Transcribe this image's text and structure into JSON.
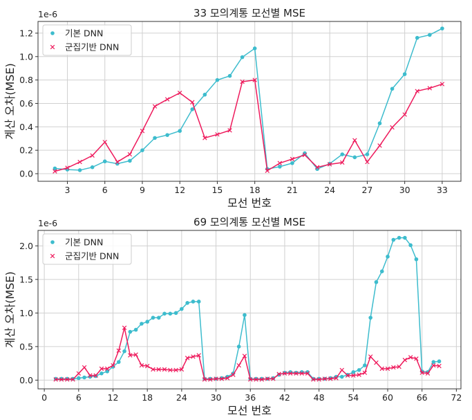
{
  "chart_data": [
    {
      "type": "line",
      "title": "33 모의계통 모선별 MSE",
      "offset_label": "1e-6",
      "x_label": "모선 번호",
      "y_label": "계산 오차(MSE)",
      "x": [
        2,
        3,
        4,
        5,
        6,
        7,
        8,
        9,
        10,
        11,
        12,
        13,
        14,
        15,
        16,
        17,
        18,
        19,
        20,
        21,
        22,
        23,
        24,
        25,
        26,
        27,
        28,
        29,
        30,
        31,
        32,
        33
      ],
      "series": [
        {
          "name": "기본 DNN",
          "color": "#3dbccd",
          "marker": "o",
          "values": [
            0.045,
            0.035,
            0.03,
            0.055,
            0.105,
            0.085,
            0.11,
            0.2,
            0.305,
            0.33,
            0.365,
            0.55,
            0.675,
            0.8,
            0.835,
            0.995,
            1.07,
            0.04,
            0.06,
            0.09,
            0.175,
            0.04,
            0.085,
            0.165,
            0.14,
            0.165,
            0.43,
            0.725,
            0.85,
            1.16,
            1.185,
            1.24
          ]
        },
        {
          "name": "군집기반 DNN",
          "color": "#ee1a5c",
          "marker": "x",
          "values": [
            0.02,
            0.05,
            0.1,
            0.155,
            0.27,
            0.1,
            0.165,
            0.365,
            0.575,
            0.635,
            0.69,
            0.61,
            0.305,
            0.335,
            0.37,
            0.785,
            0.8,
            0.025,
            0.09,
            0.125,
            0.16,
            0.055,
            0.08,
            0.095,
            0.285,
            0.1,
            0.24,
            0.395,
            0.505,
            0.705,
            0.73,
            0.765
          ]
        }
      ],
      "xlim": [
        0.65,
        34.5
      ],
      "xticks": [
        3,
        6,
        9,
        12,
        15,
        18,
        21,
        24,
        27,
        30,
        33
      ],
      "ylim": [
        -0.065,
        1.3
      ],
      "yticks": [
        {
          "value": 0,
          "label": "0.0"
        },
        0.2,
        0.4,
        0.6,
        0.8,
        {
          "value": 1,
          "label": "1.0"
        },
        1.2
      ],
      "grid": true,
      "legend": "upper left"
    },
    {
      "type": "line",
      "title": "69 모의계통 모선별 MSE",
      "offset_label": "1e-6",
      "x_label": "모선 번호",
      "y_label": "계산 오차(MSE)",
      "x": [
        2,
        3,
        4,
        5,
        6,
        7,
        8,
        9,
        10,
        11,
        12,
        13,
        14,
        15,
        16,
        17,
        18,
        19,
        20,
        21,
        22,
        23,
        24,
        25,
        26,
        27,
        28,
        29,
        30,
        31,
        32,
        33,
        34,
        35,
        36,
        37,
        38,
        39,
        40,
        41,
        42,
        43,
        44,
        45,
        46,
        47,
        48,
        49,
        50,
        51,
        52,
        53,
        54,
        55,
        56,
        57,
        58,
        59,
        60,
        61,
        62,
        63,
        64,
        65,
        66,
        67,
        68,
        69
      ],
      "series": [
        {
          "name": "기본 DNN",
          "color": "#3dbccd",
          "marker": "o",
          "values": [
            0.02,
            0.02,
            0.02,
            0.02,
            0.03,
            0.04,
            0.05,
            0.06,
            0.1,
            0.13,
            0.2,
            0.27,
            0.43,
            0.72,
            0.75,
            0.84,
            0.87,
            0.93,
            0.93,
            0.99,
            0.99,
            1.0,
            1.06,
            1.15,
            1.17,
            1.17,
            0.02,
            0.02,
            0.02,
            0.03,
            0.05,
            0.1,
            0.5,
            0.97,
            0.02,
            0.02,
            0.02,
            0.02,
            0.03,
            0.08,
            0.11,
            0.12,
            0.11,
            0.12,
            0.12,
            0.02,
            0.02,
            0.02,
            0.03,
            0.05,
            0.05,
            0.08,
            0.12,
            0.15,
            0.22,
            0.93,
            1.46,
            1.62,
            1.84,
            2.09,
            2.12,
            2.12,
            2.01,
            1.8,
            0.13,
            0.12,
            0.27,
            0.28
          ]
        },
        {
          "name": "군집기반 DNN",
          "color": "#ee1a5c",
          "marker": "x",
          "values": [
            0.01,
            0.01,
            0.01,
            0.01,
            0.1,
            0.19,
            0.07,
            0.07,
            0.17,
            0.17,
            0.22,
            0.44,
            0.78,
            0.37,
            0.38,
            0.22,
            0.21,
            0.16,
            0.16,
            0.16,
            0.15,
            0.15,
            0.16,
            0.33,
            0.35,
            0.37,
            0.01,
            0.01,
            0.02,
            0.02,
            0.03,
            0.08,
            0.22,
            0.36,
            0.01,
            0.01,
            0.01,
            0.02,
            0.02,
            0.09,
            0.1,
            0.1,
            0.1,
            0.1,
            0.1,
            0.01,
            0.01,
            0.02,
            0.02,
            0.03,
            0.15,
            0.07,
            0.07,
            0.08,
            0.11,
            0.35,
            0.26,
            0.17,
            0.17,
            0.19,
            0.2,
            0.3,
            0.34,
            0.32,
            0.11,
            0.1,
            0.22,
            0.21
          ]
        }
      ],
      "xlim": [
        -1.1,
        72.8
      ],
      "xticks": [
        0,
        6,
        12,
        18,
        24,
        30,
        36,
        42,
        48,
        54,
        60,
        66,
        72
      ],
      "ylim": [
        -0.13,
        2.23
      ],
      "yticks": [
        {
          "value": 0,
          "label": "0.0"
        },
        0.5,
        {
          "value": 1,
          "label": "1.0"
        },
        1.5,
        {
          "value": 2,
          "label": "2.0"
        }
      ],
      "grid": true,
      "legend": "upper left"
    }
  ]
}
